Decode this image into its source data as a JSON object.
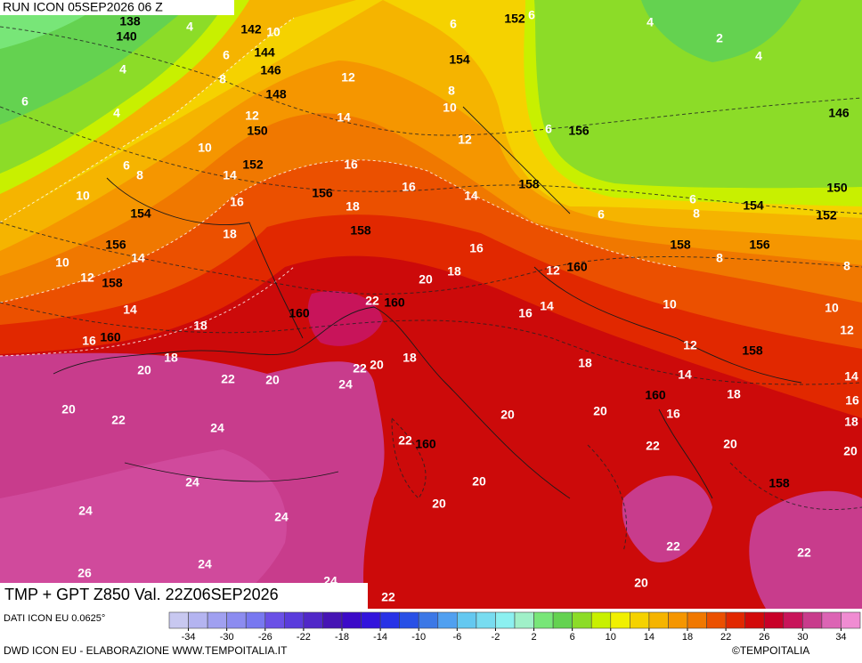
{
  "map": {
    "run": "RUN ICON 05SEP2026 06 Z",
    "title": "TMP + GPT Z850 Val. 22Z06SEP2026",
    "source": "DATI ICON EU 0.0625°",
    "credit": "DWD ICON EU - ELABORAZIONE WWW.TEMPOITALIA.IT",
    "copyright": "©TEMPOITALIA",
    "geopotential_labels": [
      138,
      140,
      142,
      144,
      146,
      148,
      150,
      152,
      156,
      158,
      154,
      156,
      158,
      160,
      160,
      160,
      160,
      158,
      156,
      154,
      152,
      146,
      150,
      152,
      154,
      156,
      158,
      158,
      160,
      160,
      158
    ],
    "temperature_labels": [
      4,
      10,
      6,
      8,
      4,
      4,
      6,
      12,
      12,
      14,
      10,
      6,
      8,
      14,
      10,
      16,
      18,
      16,
      18,
      16,
      14,
      12,
      8,
      10,
      6,
      6,
      4,
      2,
      4,
      6,
      6,
      8,
      6,
      14,
      10,
      12,
      14,
      16,
      18,
      18,
      20,
      22,
      20,
      24,
      22,
      20,
      18,
      20,
      18,
      16,
      12,
      16,
      14,
      22,
      10,
      12,
      14,
      18,
      16,
      20,
      22,
      20,
      20,
      18,
      20,
      22,
      24,
      24,
      24,
      24,
      26,
      24,
      24,
      22,
      20,
      22,
      22,
      20,
      20,
      22,
      20,
      18,
      16,
      14,
      12,
      10,
      8,
      8
    ],
    "colorbar": {
      "range": [
        -36,
        36
      ],
      "ticks": [
        -34,
        -30,
        -26,
        -22,
        -18,
        -14,
        -10,
        -6,
        -2,
        2,
        6,
        10,
        14,
        18,
        22,
        26,
        30,
        34
      ],
      "colors": [
        "#c8c8f0",
        "#b4b4f0",
        "#a0a0f0",
        "#8c8cf0",
        "#7878f0",
        "#6a50e6",
        "#5a3cdc",
        "#5028c8",
        "#4614b4",
        "#3c0ac8",
        "#3214dc",
        "#2832e6",
        "#2850e6",
        "#3c78e6",
        "#50a0f0",
        "#64c8f0",
        "#78dcf0",
        "#8cf0f0",
        "#a0f0c8",
        "#78e678",
        "#64d250",
        "#8cdc28",
        "#c8f000",
        "#f0f000",
        "#f5d200",
        "#f5b400",
        "#f59600",
        "#f07800",
        "#eb5000",
        "#e12800",
        "#d20a0a",
        "#c80028",
        "#c8145a",
        "#c83c8c",
        "#dc64b4",
        "#f08cd2"
      ]
    }
  }
}
